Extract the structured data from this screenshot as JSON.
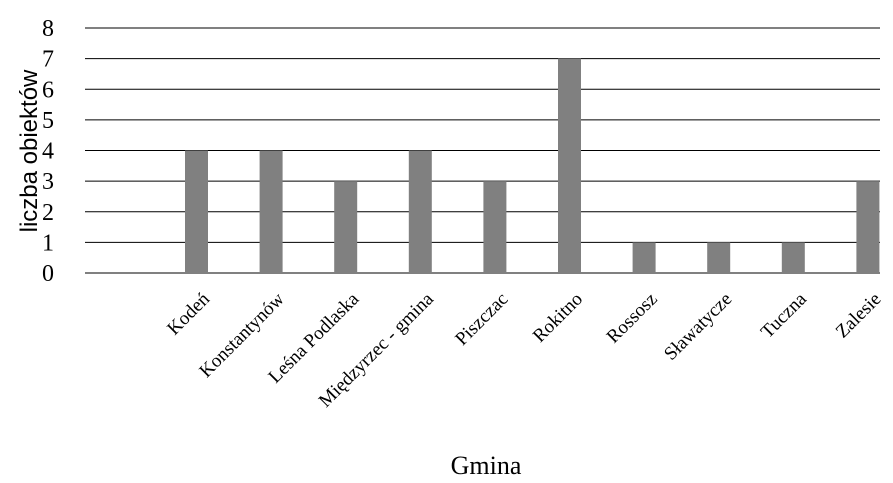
{
  "chart_data": {
    "type": "bar",
    "categories": [
      "Kodeń",
      "Konstantynów",
      "Leśna Podlaska",
      "Międzyrzec - gmina",
      "Piszczac",
      "Rokitno",
      "Rossosz",
      "Sławatycze",
      "Tuczna",
      "Zalesie"
    ],
    "values": [
      4,
      4,
      3,
      4,
      3,
      7,
      1,
      1,
      1,
      3
    ],
    "xlabel": "Gmina",
    "ylabel": "liczba obiektów",
    "ylim": [
      0,
      8
    ],
    "yticks": [
      "0",
      "1",
      "2",
      "3",
      "4",
      "5",
      "6",
      "7",
      "8"
    ],
    "grid": true,
    "bar_color": "#808080"
  }
}
